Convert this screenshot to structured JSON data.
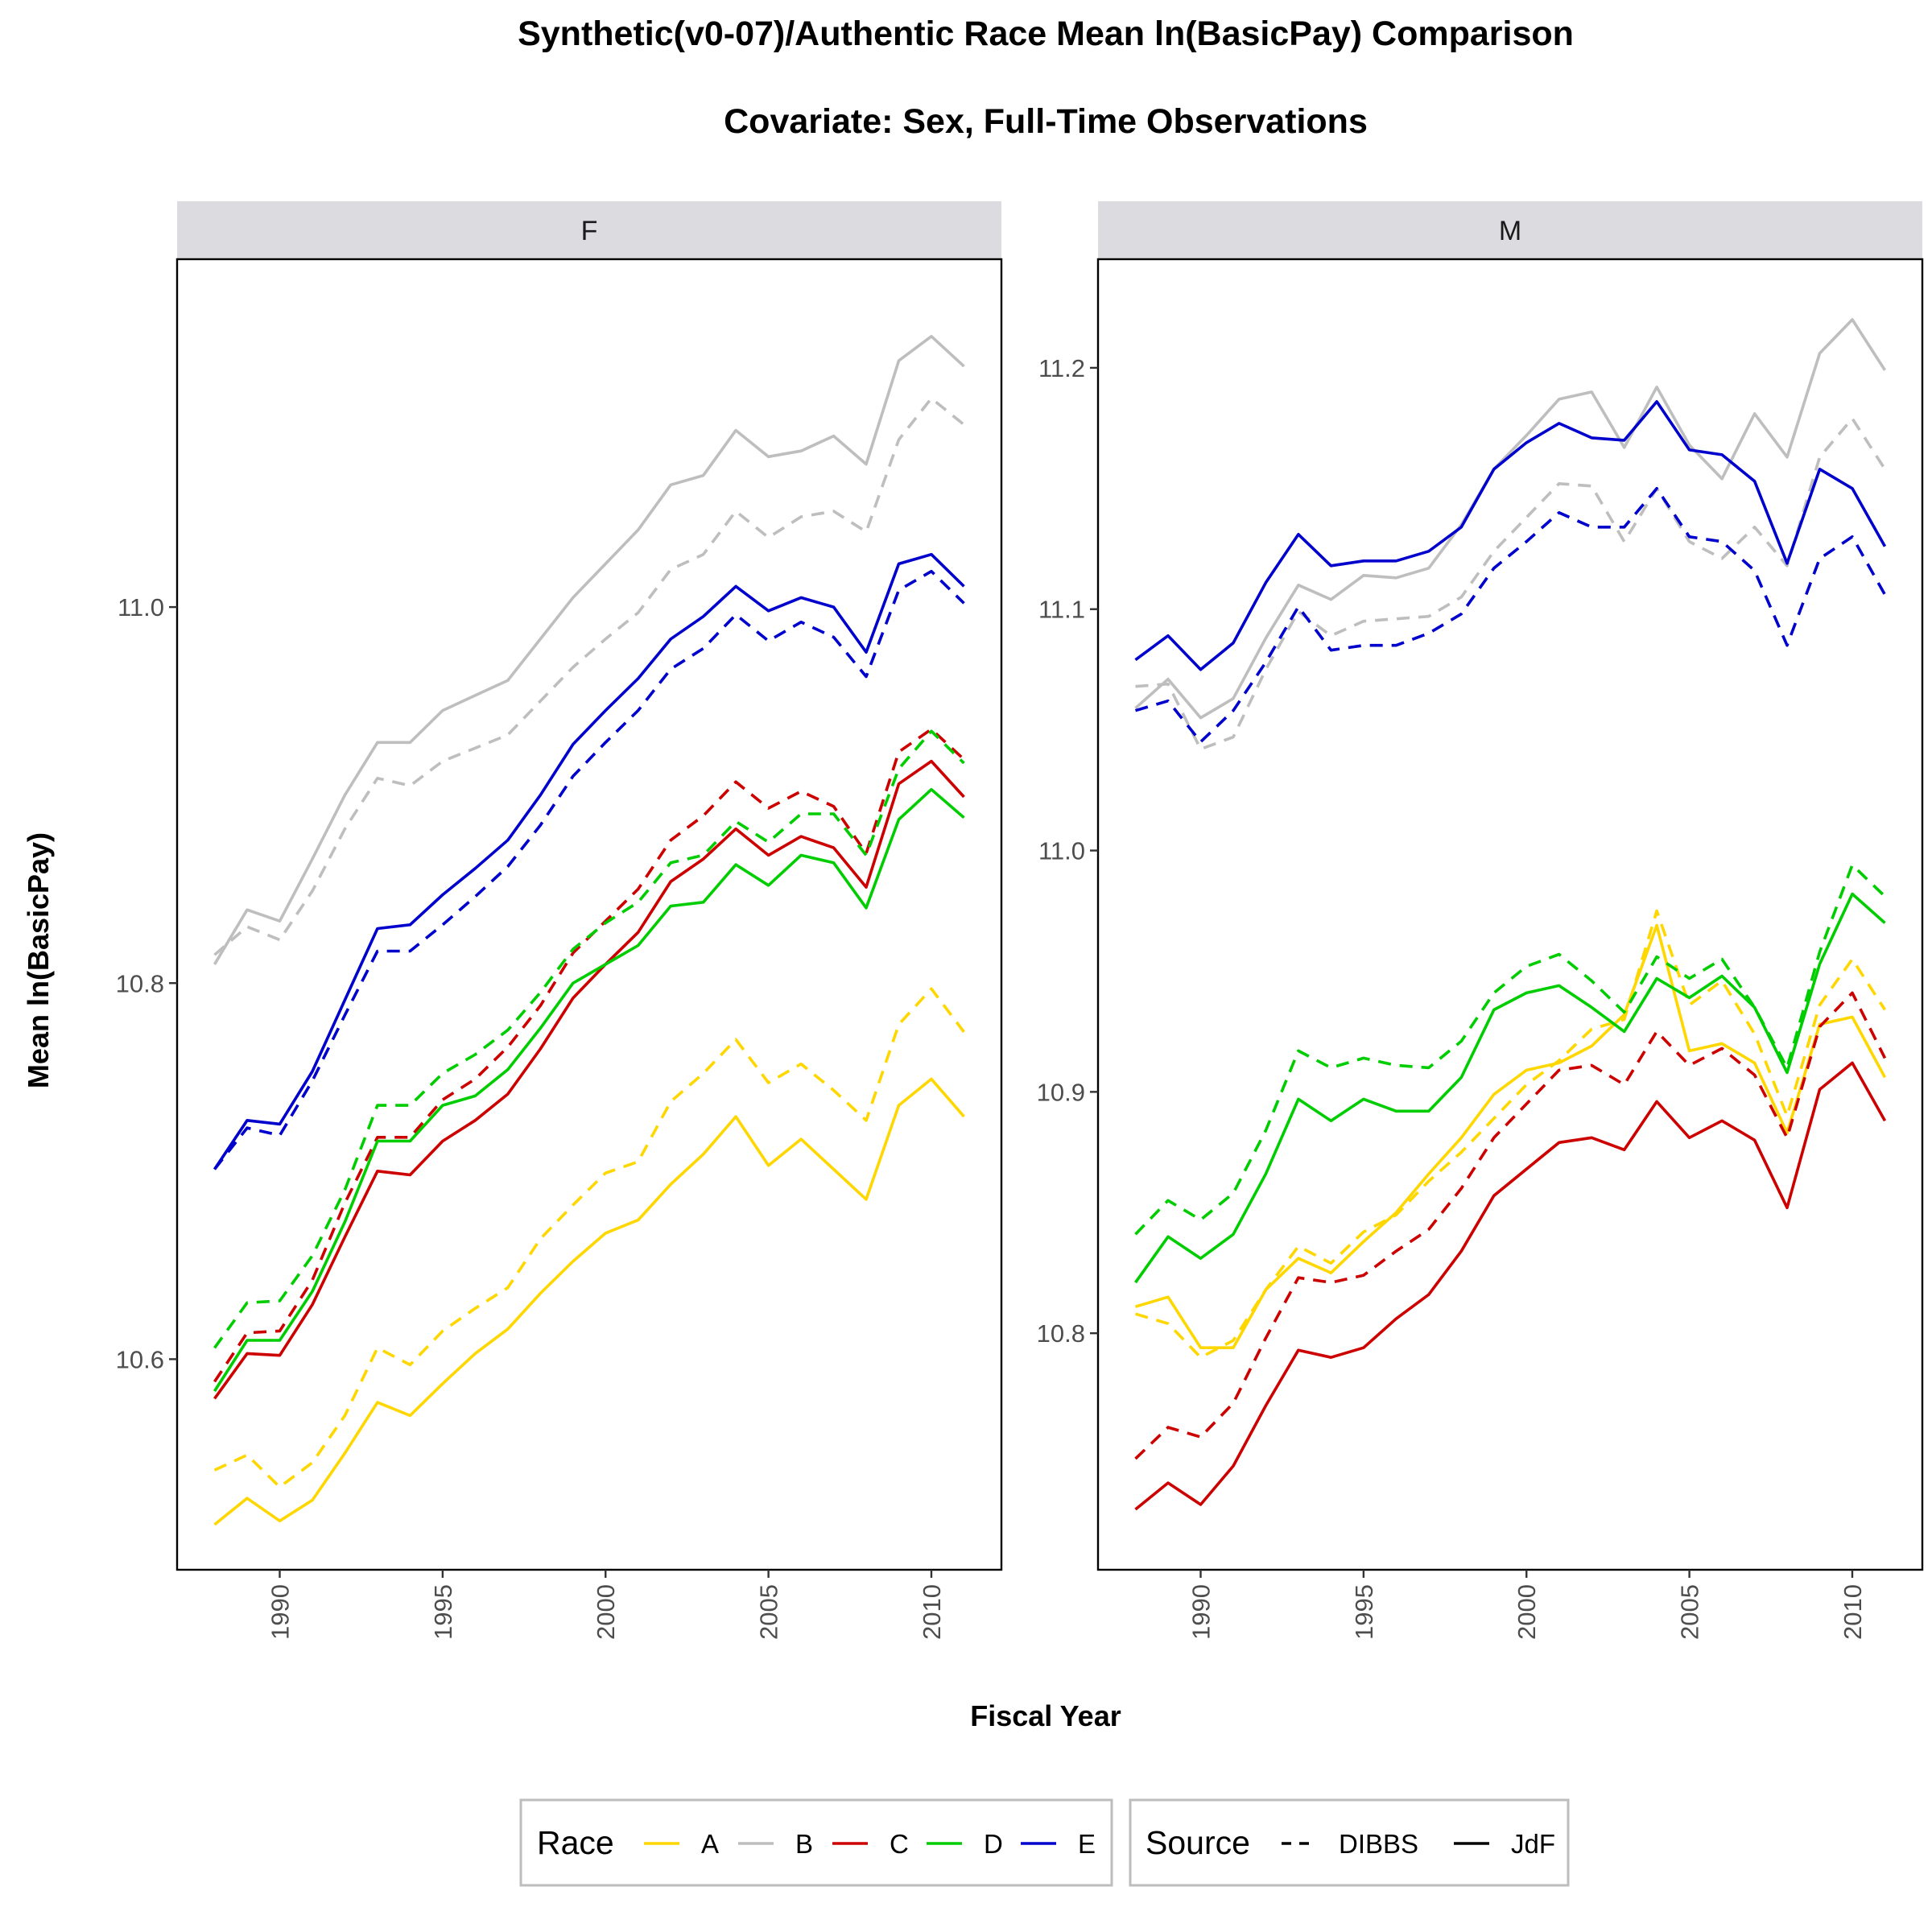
{
  "title": "Synthetic(v0-07)/Authentic Race Mean ln(BasicPay) Comparison",
  "subtitle": "Covariate:  Sex, Full-Time Observations",
  "chart_data": {
    "type": "line",
    "xlabel": "Fiscal Year",
    "ylabel": "Mean ln(BasicPay)",
    "x": [
      1988,
      1989,
      1990,
      1991,
      1992,
      1993,
      1994,
      1995,
      1996,
      1997,
      1998,
      1999,
      2000,
      2001,
      2002,
      2003,
      2004,
      2005,
      2006,
      2007,
      2008,
      2009,
      2010,
      2011
    ],
    "x_ticks": [
      1990,
      1995,
      2000,
      2005,
      2010
    ],
    "grid": false,
    "legend_position": "bottom",
    "legends": [
      {
        "title": "Race",
        "entries": [
          {
            "label": "A",
            "color": "#FFD700"
          },
          {
            "label": "B",
            "color": "#BEBEBE"
          },
          {
            "label": "C",
            "color": "#CD0000"
          },
          {
            "label": "D",
            "color": "#00CD00"
          },
          {
            "label": "E",
            "color": "#0000CD"
          }
        ]
      },
      {
        "title": "Source",
        "entries": [
          {
            "label": "DIBBS",
            "linetype": "dashed"
          },
          {
            "label": "JdF",
            "linetype": "solid"
          }
        ]
      }
    ],
    "panels": [
      {
        "label": "F",
        "ylim": [
          10.488,
          11.185
        ],
        "y_ticks": [
          10.6,
          10.8,
          11.0
        ],
        "y_tick_labels": [
          "10.6",
          "10.8",
          "11.0"
        ],
        "series": [
          {
            "race": "A",
            "source": "JdF",
            "values": [
              10.512,
              10.526,
              10.514,
              10.525,
              10.55,
              10.577,
              10.57,
              10.587,
              10.603,
              10.616,
              10.635,
              10.652,
              10.667,
              10.674,
              10.693,
              10.709,
              10.729,
              10.703,
              10.717,
              10.701,
              10.685,
              10.735,
              10.749,
              10.729
            ]
          },
          {
            "race": "A",
            "source": "DIBBS",
            "values": [
              10.541,
              10.549,
              10.532,
              10.545,
              10.57,
              10.606,
              10.597,
              10.615,
              10.627,
              10.638,
              10.664,
              10.682,
              10.699,
              10.705,
              10.737,
              10.752,
              10.77,
              10.747,
              10.757,
              10.743,
              10.727,
              10.778,
              10.797,
              10.774
            ]
          },
          {
            "race": "B",
            "source": "JdF",
            "values": [
              10.81,
              10.839,
              10.833,
              10.866,
              10.9,
              10.928,
              10.928,
              10.945,
              10.953,
              10.961,
              10.983,
              11.005,
              11.023,
              11.041,
              11.065,
              11.07,
              11.094,
              11.08,
              11.083,
              11.091,
              11.076,
              11.131,
              11.144,
              11.128
            ]
          },
          {
            "race": "B",
            "source": "DIBBS",
            "values": [
              10.815,
              10.83,
              10.823,
              10.849,
              10.882,
              10.909,
              10.905,
              10.918,
              10.925,
              10.932,
              10.95,
              10.968,
              10.983,
              10.997,
              11.02,
              11.028,
              11.051,
              11.037,
              11.048,
              11.051,
              11.04,
              11.089,
              11.111,
              11.097
            ]
          },
          {
            "race": "C",
            "source": "JdF",
            "values": [
              10.579,
              10.603,
              10.602,
              10.629,
              10.665,
              10.7,
              10.698,
              10.716,
              10.727,
              10.741,
              10.765,
              10.792,
              10.81,
              10.827,
              10.854,
              10.866,
              10.882,
              10.868,
              10.878,
              10.872,
              10.851,
              10.906,
              10.918,
              10.899
            ]
          },
          {
            "race": "C",
            "source": "DIBBS",
            "values": [
              10.588,
              10.614,
              10.615,
              10.642,
              10.683,
              10.718,
              10.718,
              10.738,
              10.749,
              10.766,
              10.788,
              10.816,
              10.833,
              10.85,
              10.876,
              10.889,
              10.907,
              10.893,
              10.902,
              10.894,
              10.869,
              10.923,
              10.935,
              10.919
            ]
          },
          {
            "race": "D",
            "source": "JdF",
            "values": [
              10.583,
              10.61,
              10.61,
              10.636,
              10.673,
              10.716,
              10.716,
              10.735,
              10.74,
              10.754,
              10.776,
              10.8,
              10.81,
              10.82,
              10.841,
              10.843,
              10.863,
              10.852,
              10.868,
              10.864,
              10.84,
              10.887,
              10.903,
              10.888
            ]
          },
          {
            "race": "D",
            "source": "DIBBS",
            "values": [
              10.606,
              10.63,
              10.631,
              10.655,
              10.69,
              10.735,
              10.735,
              10.752,
              10.762,
              10.775,
              10.795,
              10.818,
              10.832,
              10.843,
              10.864,
              10.868,
              10.886,
              10.875,
              10.89,
              10.89,
              10.868,
              10.914,
              10.934,
              10.917
            ]
          },
          {
            "race": "E",
            "source": "JdF",
            "values": [
              10.701,
              10.727,
              10.725,
              10.753,
              10.791,
              10.829,
              10.831,
              10.847,
              10.861,
              10.876,
              10.9,
              10.927,
              10.945,
              10.962,
              10.983,
              10.995,
              11.011,
              10.998,
              11.005,
              11.0,
              10.976,
              11.023,
              11.028,
              11.011
            ]
          },
          {
            "race": "E",
            "source": "DIBBS",
            "values": [
              10.701,
              10.723,
              10.719,
              10.748,
              10.783,
              10.817,
              10.817,
              10.831,
              10.846,
              10.862,
              10.884,
              10.91,
              10.928,
              10.945,
              10.967,
              10.978,
              10.996,
              10.982,
              10.992,
              10.984,
              10.963,
              11.009,
              11.019,
              11.002
            ]
          }
        ]
      },
      {
        "label": "M",
        "ylim": [
          10.702,
          11.245
        ],
        "y_ticks": [
          10.8,
          10.9,
          11.0,
          11.1,
          11.2
        ],
        "y_tick_labels": [
          "10.8",
          "10.9",
          "11.0",
          "11.1",
          "11.2"
        ],
        "series": [
          {
            "race": "A",
            "source": "JdF",
            "values": [
              10.811,
              10.815,
              10.794,
              10.794,
              10.818,
              10.831,
              10.825,
              10.838,
              10.85,
              10.866,
              10.881,
              10.899,
              10.909,
              10.912,
              10.919,
              10.932,
              10.969,
              10.917,
              10.92,
              10.912,
              10.883,
              10.928,
              10.931,
              10.906
            ]
          },
          {
            "race": "A",
            "source": "DIBBS",
            "values": [
              10.808,
              10.804,
              10.79,
              10.797,
              10.818,
              10.836,
              10.829,
              10.842,
              10.849,
              10.863,
              10.875,
              10.889,
              10.903,
              10.913,
              10.926,
              10.93,
              10.975,
              10.936,
              10.946,
              10.924,
              10.89,
              10.936,
              10.955,
              10.934
            ]
          },
          {
            "race": "B",
            "source": "JdF",
            "values": [
              11.059,
              11.071,
              11.055,
              11.063,
              11.088,
              11.11,
              11.104,
              11.114,
              11.113,
              11.117,
              11.135,
              11.158,
              11.172,
              11.187,
              11.19,
              11.167,
              11.192,
              11.168,
              11.154,
              11.181,
              11.163,
              11.206,
              11.22,
              11.199
            ]
          },
          {
            "race": "B",
            "source": "DIBBS",
            "values": [
              11.068,
              11.069,
              11.042,
              11.047,
              11.075,
              11.099,
              11.089,
              11.095,
              11.096,
              11.097,
              11.105,
              11.124,
              11.138,
              11.152,
              11.151,
              11.128,
              11.15,
              11.128,
              11.121,
              11.134,
              11.118,
              11.163,
              11.179,
              11.158
            ]
          },
          {
            "race": "C",
            "source": "JdF",
            "values": [
              10.727,
              10.738,
              10.729,
              10.745,
              10.77,
              10.793,
              10.79,
              10.794,
              10.806,
              10.816,
              10.834,
              10.857,
              10.868,
              10.879,
              10.881,
              10.876,
              10.896,
              10.881,
              10.888,
              10.88,
              10.852,
              10.901,
              10.912,
              10.888
            ]
          },
          {
            "race": "C",
            "source": "DIBBS",
            "values": [
              10.748,
              10.761,
              10.757,
              10.771,
              10.798,
              10.823,
              10.821,
              10.824,
              10.834,
              10.843,
              10.86,
              10.881,
              10.895,
              10.909,
              10.911,
              10.903,
              10.925,
              10.911,
              10.918,
              10.907,
              10.881,
              10.927,
              10.941,
              10.914
            ]
          },
          {
            "race": "D",
            "source": "JdF",
            "values": [
              10.821,
              10.84,
              10.831,
              10.841,
              10.866,
              10.897,
              10.888,
              10.897,
              10.892,
              10.892,
              10.906,
              10.934,
              10.941,
              10.944,
              10.935,
              10.925,
              10.947,
              10.939,
              10.948,
              10.935,
              10.908,
              10.953,
              10.982,
              10.97
            ]
          },
          {
            "race": "D",
            "source": "DIBBS",
            "values": [
              10.841,
              10.855,
              10.847,
              10.858,
              10.884,
              10.917,
              10.91,
              10.914,
              10.911,
              10.91,
              10.921,
              10.941,
              10.952,
              10.957,
              10.946,
              10.933,
              10.956,
              10.947,
              10.955,
              10.935,
              10.91,
              10.958,
              10.994,
              10.981
            ]
          },
          {
            "race": "E",
            "source": "JdF",
            "values": [
              11.079,
              11.089,
              11.075,
              11.086,
              11.111,
              11.131,
              11.118,
              11.12,
              11.12,
              11.124,
              11.134,
              11.158,
              11.169,
              11.177,
              11.171,
              11.17,
              11.186,
              11.166,
              11.164,
              11.153,
              11.119,
              11.158,
              11.15,
              11.126
            ]
          },
          {
            "race": "E",
            "source": "DIBBS",
            "values": [
              11.058,
              11.062,
              11.045,
              11.058,
              11.078,
              11.101,
              11.083,
              11.085,
              11.085,
              11.09,
              11.098,
              11.117,
              11.128,
              11.14,
              11.134,
              11.134,
              11.15,
              11.13,
              11.128,
              11.116,
              11.085,
              11.121,
              11.13,
              11.106
            ]
          }
        ]
      }
    ]
  }
}
